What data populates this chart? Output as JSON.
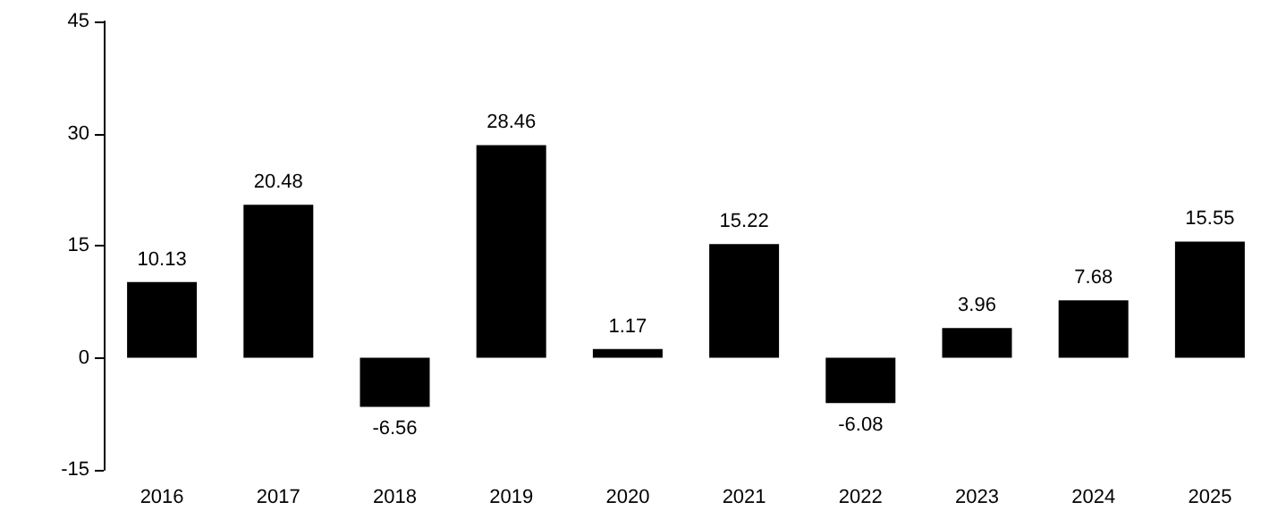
{
  "chart_data": {
    "type": "bar",
    "categories": [
      "2016",
      "2017",
      "2018",
      "2019",
      "2020",
      "2021",
      "2022",
      "2023",
      "2024",
      "2025"
    ],
    "values": [
      10.13,
      20.48,
      -6.56,
      28.46,
      1.17,
      15.22,
      -6.08,
      3.96,
      7.68,
      15.55
    ],
    "color": "#000000",
    "ylim": [
      -15,
      45
    ],
    "yticks": [
      -15,
      0,
      15,
      30,
      45
    ],
    "grid": false,
    "data_labels": true
  }
}
